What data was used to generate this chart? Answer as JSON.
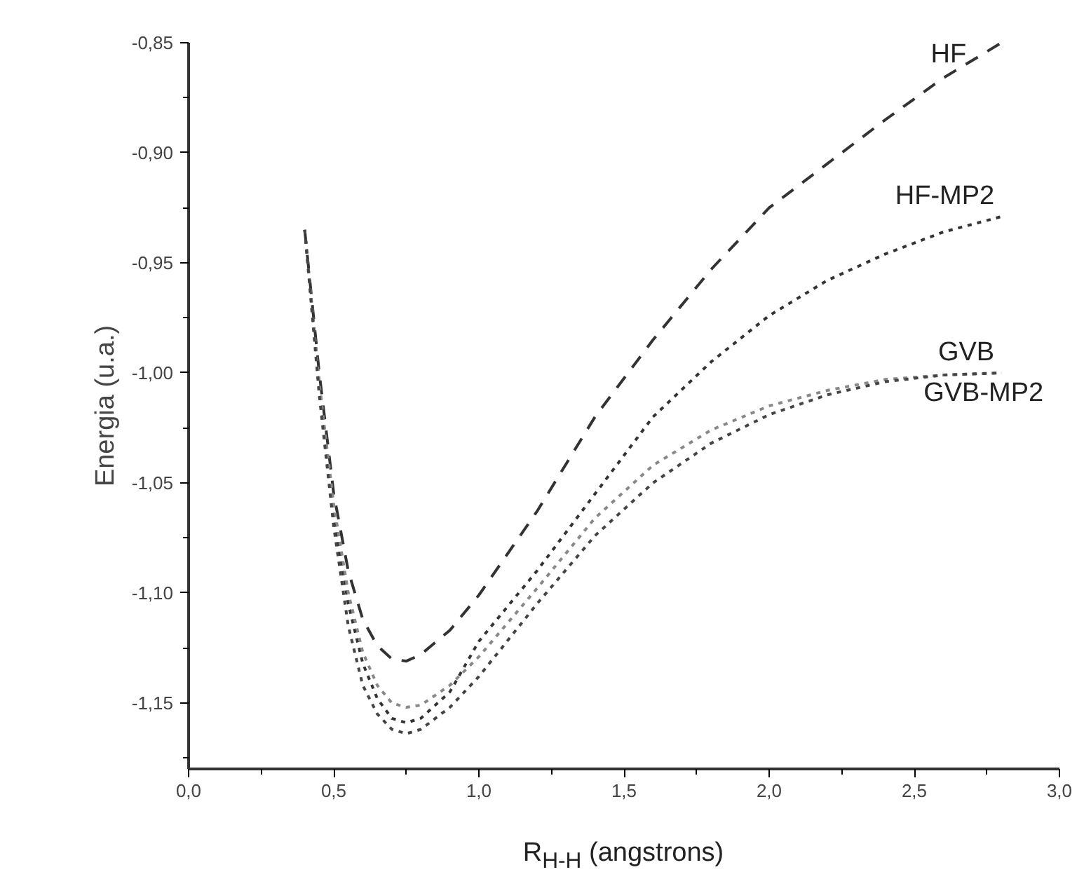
{
  "chart_data": {
    "type": "line",
    "xlabel": "R$_{H-H}$ (angstrons)",
    "ylabel": "Energia (u.a.)",
    "x": [
      0.4,
      0.45,
      0.5,
      0.55,
      0.6,
      0.65,
      0.7,
      0.75,
      0.8,
      0.9,
      1.0,
      1.2,
      1.4,
      1.6,
      1.8,
      2.0,
      2.2,
      2.4,
      2.6,
      2.8
    ],
    "series": [
      {
        "name": "HF",
        "color": "#333333",
        "line_style": "dashed",
        "values": [
          -0.935,
          -1.0,
          -1.055,
          -1.09,
          -1.112,
          -1.124,
          -1.13,
          -1.131,
          -1.128,
          -1.117,
          -1.101,
          -1.063,
          -1.02,
          -0.985,
          -0.953,
          -0.925,
          -0.905,
          -0.885,
          -0.866,
          -0.85
        ]
      },
      {
        "name": "HF-MP2",
        "color": "#333333",
        "line_style": "dotted",
        "values": [
          -0.935,
          -1.005,
          -1.065,
          -1.105,
          -1.132,
          -1.148,
          -1.157,
          -1.159,
          -1.157,
          -1.145,
          -1.122,
          -1.09,
          -1.055,
          -1.02,
          -0.995,
          -0.974,
          -0.958,
          -0.946,
          -0.936,
          -0.929
        ]
      },
      {
        "name": "GVB",
        "color": "#888888",
        "line_style": "dotted",
        "values": [
          -0.935,
          -1.005,
          -1.06,
          -1.1,
          -1.127,
          -1.142,
          -1.15,
          -1.152,
          -1.151,
          -1.142,
          -1.129,
          -1.098,
          -1.066,
          -1.042,
          -1.026,
          -1.015,
          -1.008,
          -1.003,
          -1.001,
          -1.0
        ]
      },
      {
        "name": "GVB-MP2",
        "color": "#444444",
        "line_style": "dotted",
        "values": [
          -0.935,
          -1.01,
          -1.07,
          -1.115,
          -1.142,
          -1.155,
          -1.162,
          -1.164,
          -1.162,
          -1.152,
          -1.138,
          -1.105,
          -1.074,
          -1.05,
          -1.032,
          -1.019,
          -1.01,
          -1.004,
          -1.001,
          -1.0
        ]
      }
    ],
    "xlim": [
      0.0,
      3.0
    ],
    "ylim": [
      -1.18,
      -0.85
    ],
    "xticks": [
      {
        "value": 0.0,
        "label": "0,0"
      },
      {
        "value": 0.25,
        "label": null
      },
      {
        "value": 0.5,
        "label": "0,5"
      },
      {
        "value": 0.75,
        "label": null
      },
      {
        "value": 1.0,
        "label": "1,0"
      },
      {
        "value": 1.25,
        "label": null
      },
      {
        "value": 1.5,
        "label": "1,5"
      },
      {
        "value": 1.75,
        "label": null
      },
      {
        "value": 2.0,
        "label": "2,0"
      },
      {
        "value": 2.25,
        "label": null
      },
      {
        "value": 2.5,
        "label": "2,5"
      },
      {
        "value": 2.75,
        "label": null
      },
      {
        "value": 3.0,
        "label": "3,0"
      }
    ],
    "yticks": [
      {
        "value": -1.175,
        "label": null
      },
      {
        "value": -1.15,
        "label": "-1,15"
      },
      {
        "value": -1.125,
        "label": null
      },
      {
        "value": -1.1,
        "label": "-1,10"
      },
      {
        "value": -1.075,
        "label": null
      },
      {
        "value": -1.05,
        "label": "-1,05"
      },
      {
        "value": -1.025,
        "label": null
      },
      {
        "value": -1.0,
        "label": "-1,00"
      },
      {
        "value": -0.975,
        "label": null
      },
      {
        "value": -0.95,
        "label": "-0,95"
      },
      {
        "value": -0.925,
        "label": null
      },
      {
        "value": -0.9,
        "label": "-0,90"
      },
      {
        "value": -0.875,
        "label": null
      },
      {
        "value": -0.85,
        "label": "-0,85"
      }
    ],
    "grid": false
  }
}
